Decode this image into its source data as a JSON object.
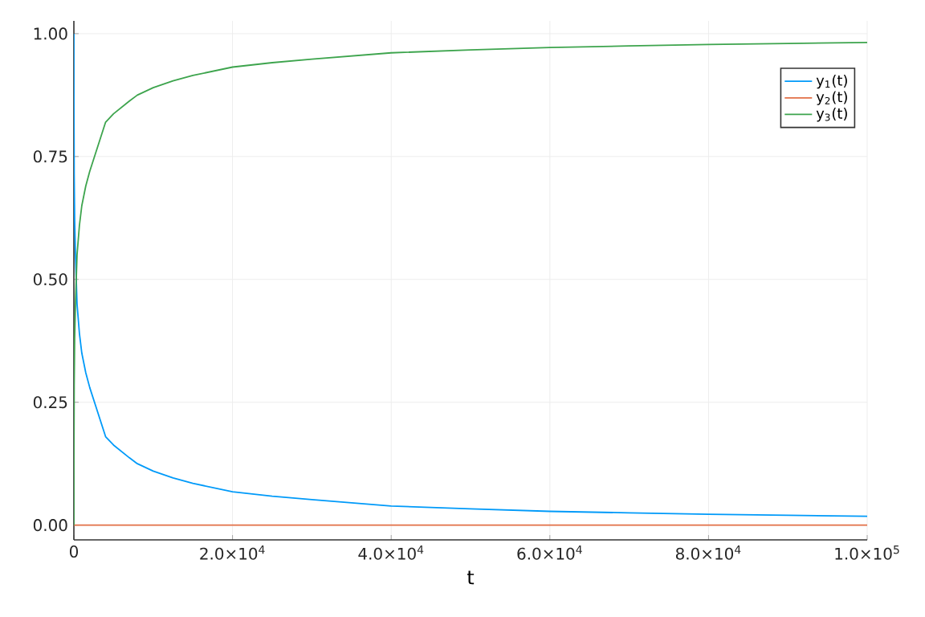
{
  "chart_data": {
    "type": "line",
    "xlabel": "t",
    "legend": "top right",
    "grid": true,
    "x": [
      0,
      0.4,
      4,
      40,
      100,
      200,
      400,
      700,
      1000,
      1500,
      2000,
      3000,
      4000,
      5000,
      6000,
      7000,
      8000,
      10000,
      12500,
      15000,
      20000,
      25000,
      30000,
      40000,
      50000,
      60000,
      70000,
      80000,
      90000,
      100000
    ],
    "series": [
      {
        "name": "y$_{1}$(t)",
        "color": "#009af9",
        "values": [
          1.0,
          0.985,
          0.906,
          0.716,
          0.62,
          0.55,
          0.45,
          0.39,
          0.35,
          0.31,
          0.28,
          0.23,
          0.18,
          0.163,
          0.15,
          0.137,
          0.125,
          0.11,
          0.096,
          0.085,
          0.068,
          0.059,
          0.052,
          0.039,
          0.033,
          0.028,
          0.025,
          0.022,
          0.02,
          0.018
        ]
      },
      {
        "name": "y$_{2}$(t)",
        "color": "#e26f46",
        "values": [
          0,
          0,
          0,
          0,
          0,
          0,
          0,
          0,
          0,
          0,
          0,
          0,
          0,
          0,
          0,
          0,
          0,
          0,
          0,
          0,
          0,
          0,
          0,
          0,
          0,
          0,
          0,
          0,
          0,
          0
        ]
      },
      {
        "name": "y$_{3}$(t)",
        "color": "#3da44d",
        "values": [
          0.0,
          0.015,
          0.094,
          0.284,
          0.38,
          0.45,
          0.55,
          0.61,
          0.65,
          0.69,
          0.72,
          0.77,
          0.82,
          0.837,
          0.85,
          0.863,
          0.875,
          0.89,
          0.904,
          0.915,
          0.932,
          0.941,
          0.948,
          0.961,
          0.967,
          0.972,
          0.975,
          0.978,
          0.98,
          0.982
        ]
      }
    ],
    "xlim": [
      0,
      100000
    ],
    "ylim": [
      -0.03,
      1.026
    ],
    "xticks": [
      {
        "value": 0,
        "label": "0"
      },
      {
        "value": 20000,
        "label": "2.0×10$^{4}$"
      },
      {
        "value": 40000,
        "label": "4.0×10$^{4}$"
      },
      {
        "value": 60000,
        "label": "6.0×10$^{4}$"
      },
      {
        "value": 80000,
        "label": "8.0×10$^{4}$"
      },
      {
        "value": 100000,
        "label": "1.0×10$^{5}$"
      }
    ],
    "yticks": [
      {
        "value": 0,
        "label": "0.00"
      },
      {
        "value": 0.25,
        "label": "0.25"
      },
      {
        "value": 0.5,
        "label": "0.50"
      },
      {
        "value": 0.75,
        "label": "0.75"
      },
      {
        "value": 1,
        "label": "1.00"
      }
    ]
  }
}
